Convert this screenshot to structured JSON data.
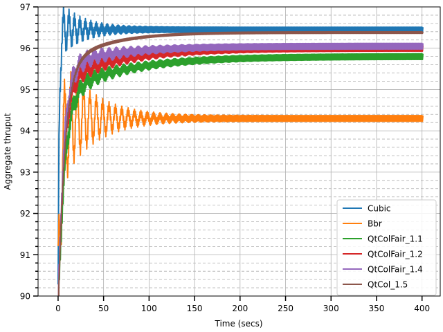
{
  "chart_data": {
    "type": "line",
    "title": "",
    "xlabel": "Time (secs)",
    "ylabel": "Aggregate thruput",
    "xlim": [
      -22,
      420
    ],
    "ylim": [
      90,
      97
    ],
    "x_ticks": [
      0,
      50,
      100,
      150,
      200,
      250,
      300,
      350,
      400
    ],
    "x_tick_labels": [
      "0",
      "50",
      "100",
      "150",
      "200",
      "250",
      "300",
      "350",
      "400"
    ],
    "y_ticks": [
      90,
      91,
      92,
      93,
      94,
      95,
      96,
      97
    ],
    "y_tick_labels": [
      "90",
      "91",
      "92",
      "93",
      "94",
      "95",
      "96",
      "97"
    ],
    "grid": "major solid, minor dashed",
    "legend_position": "lower-right",
    "series": [
      {
        "name": "Cubic",
        "color": "#1f77b4",
        "final": 96.45,
        "min_start": 89.5,
        "rise": 1.2,
        "osc_amp": 0.6,
        "osc_decay": 22,
        "osc_period": 6,
        "band": 0.06
      },
      {
        "name": "Bbr",
        "color": "#ff7f0e",
        "final": 94.3,
        "min_start": 89.5,
        "rise": 3,
        "osc_amp": 1.5,
        "osc_decay": 35,
        "osc_period": 7,
        "band": 0.07
      },
      {
        "name": "QtColFair_1.1",
        "color": "#2ca02c",
        "final": 95.8,
        "min_start": 89.5,
        "rise": 7,
        "osc_amp": 0.15,
        "osc_decay": 60,
        "osc_period": 8,
        "band": 0.07,
        "slow": 0.9,
        "slow_tau": 70
      },
      {
        "name": "QtColFair_1.2",
        "color": "#d62728",
        "final": 96.0,
        "min_start": 89.5,
        "rise": 6,
        "osc_amp": 0.15,
        "osc_decay": 60,
        "osc_period": 8,
        "band": 0.07,
        "slow": 0.8,
        "slow_tau": 65
      },
      {
        "name": "QtColFair_1.4",
        "color": "#9467bd",
        "final": 96.05,
        "min_start": 89.5,
        "rise": 6,
        "osc_amp": 0.18,
        "osc_decay": 50,
        "osc_period": 8,
        "band": 0.07,
        "slow": 0.5,
        "slow_tau": 60
      },
      {
        "name": "QtCol_1.5",
        "color": "#8c564b",
        "final": 96.38,
        "min_start": 89.5,
        "rise": 7,
        "osc_amp": 0.0,
        "osc_decay": 50,
        "osc_period": 8,
        "band": 0.02,
        "slow": 0.9,
        "slow_tau": 45
      }
    ]
  }
}
